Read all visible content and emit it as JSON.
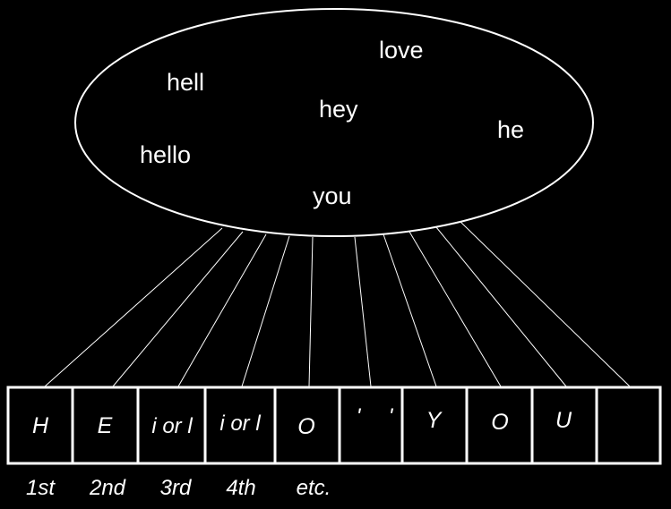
{
  "colors": {
    "background": "#000000",
    "foreground": "#ffffff"
  },
  "set": {
    "words": [
      "love",
      "hell",
      "hey",
      "he",
      "hello",
      "you"
    ]
  },
  "sequence": {
    "cells": [
      "H",
      "E",
      "i or l",
      "i or l",
      "O",
      "'",
      "'",
      "Y",
      "O",
      "U",
      ""
    ],
    "position_labels": [
      "1st",
      "2nd",
      "3rd",
      "4th",
      "etc."
    ]
  }
}
